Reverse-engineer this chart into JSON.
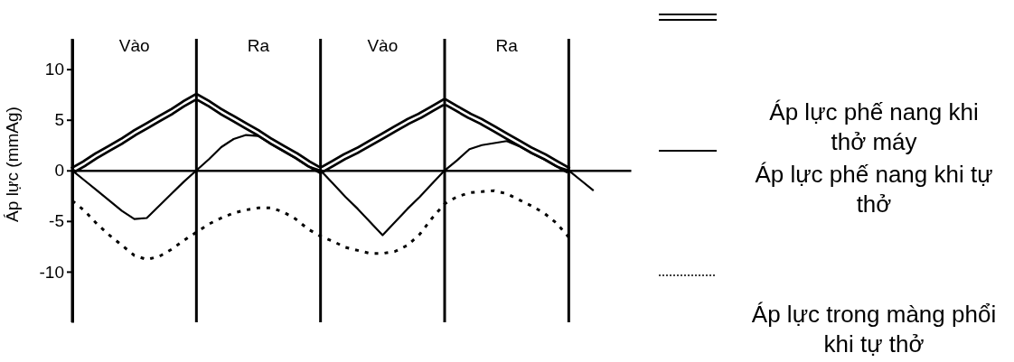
{
  "chart_data": {
    "type": "line",
    "ylabel": "Áp lực (mmAg)",
    "annotations": [
      "Vào",
      "Ra",
      "Vào",
      "Ra"
    ],
    "categories": [
      null,
      null,
      null,
      null,
      null,
      null,
      null,
      null,
      null,
      null,
      null,
      null,
      null,
      null,
      null,
      null,
      null,
      null,
      null,
      null,
      null,
      null,
      null,
      null,
      null,
      null,
      null,
      null,
      null,
      null,
      null,
      null,
      null,
      null,
      null,
      null,
      null,
      null,
      null,
      null,
      null,
      null,
      null,
      null,
      null,
      null
    ],
    "series": [
      {
        "name": "Áp lực phế nang khi thở máy",
        "color": "#000000",
        "line_style": "solid",
        "values": [
          0,
          0.7,
          1.5,
          2.2,
          2.9,
          3.7,
          4.4,
          5.1,
          5.8,
          6.6,
          7.3,
          6.6,
          5.8,
          5.1,
          4.4,
          3.7,
          2.9,
          2.2,
          1.5,
          0.7,
          0,
          0.7,
          1.4,
          2,
          2.7,
          3.4,
          4.1,
          4.8,
          5.4,
          6.1,
          6.8,
          6.1,
          5.4,
          4.8,
          4.1,
          3.4,
          2.7,
          2,
          1.4,
          0.7,
          0,
          null,
          null,
          null,
          null,
          null
        ]
      },
      {
        "name": "Áp lực phế nang khi tự thở",
        "color": "#000000",
        "line_style": "solid",
        "values": [
          0,
          -1,
          -2,
          -3,
          -4,
          -4.8,
          -4.7,
          -3.5,
          -2.3,
          -1.1,
          0,
          1.1,
          2.3,
          3.1,
          3.5,
          3.4,
          2.6,
          1.9,
          1.2,
          0.4,
          0,
          -1.3,
          -2.6,
          -3.8,
          -5.1,
          -6.4,
          -5.1,
          -3.8,
          -2.6,
          -1.3,
          0,
          1,
          2.1,
          2.5,
          2.7,
          2.9,
          2.4,
          1.7,
          1.1,
          0.4,
          0,
          -1,
          -2,
          null,
          null,
          null
        ]
      },
      {
        "name": "Áp lực trong màng phổi khi tự thở",
        "color": "#000000",
        "line_style": "dotted",
        "values": [
          -3,
          -4,
          -5.3,
          -6.4,
          -7.4,
          -8.4,
          -8.8,
          -8.5,
          -7.8,
          -6.9,
          -6.1,
          -5.3,
          -4.7,
          -4.2,
          -3.9,
          -3.7,
          -3.7,
          -4.1,
          -4.8,
          -5.8,
          -6.5,
          -7,
          -7.6,
          -7.9,
          -8.2,
          -8.2,
          -8,
          -7.4,
          -6.3,
          -4.7,
          -3.3,
          -2.6,
          -2.2,
          -2.1,
          -2,
          -2.3,
          -2.9,
          -3.5,
          -4.2,
          -5.2,
          -6.6,
          null,
          null,
          null,
          null,
          null
        ]
      }
    ],
    "ylim": [
      -15,
      13
    ],
    "yticks": [
      -10,
      -5,
      0,
      5,
      10
    ],
    "grid": "x",
    "legend": "right"
  }
}
